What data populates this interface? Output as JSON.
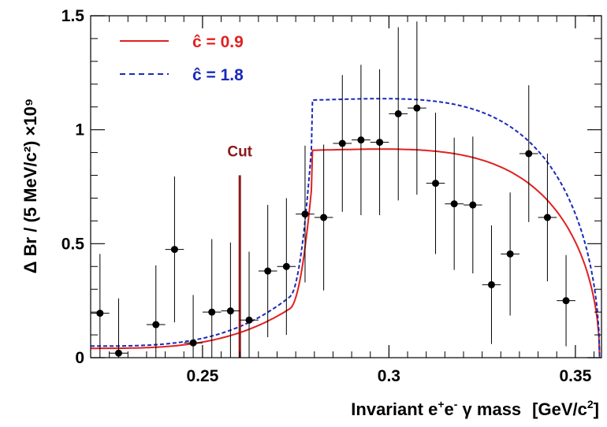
{
  "chart_data": {
    "type": "scatter",
    "xlabel_main": "Invariant e",
    "xlabel_sup1": "+",
    "xlabel_mid": "e",
    "xlabel_sup2": "-",
    "xlabel_gamma": " γ mass",
    "xlabel_units": "[GeV/c",
    "xlabel_units_sup": "2",
    "xlabel_units_end": "]",
    "ylabel": "Δ Br / (5 MeV/c²) ×10⁹",
    "xlim": [
      0.22,
      0.357
    ],
    "ylim": [
      0,
      1.5
    ],
    "x_ticks": [
      {
        "value": 0.25,
        "label": "0.25"
      },
      {
        "value": 0.3,
        "label": "0.3"
      },
      {
        "value": 0.35,
        "label": "0.35"
      }
    ],
    "y_ticks": [
      {
        "value": 0,
        "label": "0"
      },
      {
        "value": 0.5,
        "label": "0.5"
      },
      {
        "value": 1.0,
        "label": "1"
      },
      {
        "value": 1.5,
        "label": "1.5"
      }
    ],
    "points": [
      {
        "x": 0.2225,
        "y": 0.195,
        "yerr": 0.26
      },
      {
        "x": 0.2275,
        "y": 0.02,
        "yerr": 0.24
      },
      {
        "x": 0.2375,
        "y": 0.145,
        "yerr": 0.26
      },
      {
        "x": 0.2425,
        "y": 0.475,
        "yerr": 0.32
      },
      {
        "x": 0.2475,
        "y": 0.065,
        "yerr": 0.21
      },
      {
        "x": 0.2525,
        "y": 0.2,
        "yerr": 0.32
      },
      {
        "x": 0.2575,
        "y": 0.205,
        "yerr": 0.3
      },
      {
        "x": 0.2625,
        "y": 0.165,
        "yerr": 0.3
      },
      {
        "x": 0.2675,
        "y": 0.38,
        "yerr": 0.29
      },
      {
        "x": 0.2725,
        "y": 0.4,
        "yerr": 0.3
      },
      {
        "x": 0.2775,
        "y": 0.63,
        "yerr": 0.3
      },
      {
        "x": 0.2825,
        "y": 0.615,
        "yerr": 0.32
      },
      {
        "x": 0.2875,
        "y": 0.94,
        "yerr": 0.3
      },
      {
        "x": 0.2925,
        "y": 0.955,
        "yerr": 0.33
      },
      {
        "x": 0.2975,
        "y": 0.945,
        "yerr": 0.32
      },
      {
        "x": 0.3025,
        "y": 1.07,
        "yerr": 0.38
      },
      {
        "x": 0.3075,
        "y": 1.095,
        "yerr": 0.38
      },
      {
        "x": 0.3125,
        "y": 0.765,
        "yerr": 0.31
      },
      {
        "x": 0.3175,
        "y": 0.675,
        "yerr": 0.29
      },
      {
        "x": 0.3225,
        "y": 0.67,
        "yerr": 0.3
      },
      {
        "x": 0.3275,
        "y": 0.32,
        "yerr": 0.26
      },
      {
        "x": 0.3325,
        "y": 0.455,
        "yerr": 0.27
      },
      {
        "x": 0.3375,
        "y": 0.895,
        "yerr": 0.3
      },
      {
        "x": 0.3425,
        "y": 0.615,
        "yerr": 0.28
      },
      {
        "x": 0.3475,
        "y": 0.25,
        "yerr": 0.2
      }
    ],
    "series": [
      {
        "name": "ĉ = 0.9",
        "color": "#e02020",
        "dash": "solid",
        "plateau": 0.91
      },
      {
        "name": "ĉ = 1.8",
        "color": "#1a2ab8",
        "dash": "dashed",
        "plateau": 1.13
      }
    ],
    "threshold_x": 0.2795,
    "endpoint_x": 0.3565,
    "cut": {
      "x": 0.26,
      "y_top": 0.8,
      "label": "Cut",
      "color": "#8b1a1a"
    },
    "legend_position": "top-left",
    "grid": false
  }
}
